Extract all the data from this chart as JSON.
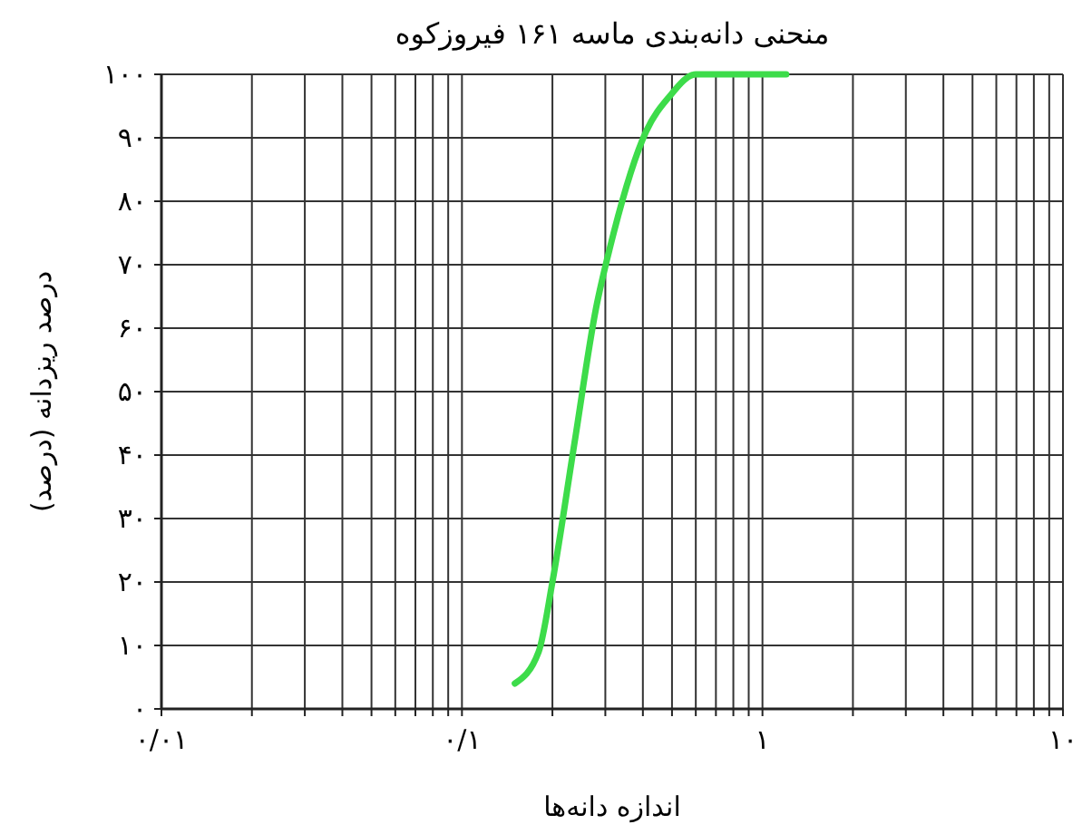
{
  "chart_data": {
    "type": "line",
    "title": "منحنی دانه‌بندی ماسه ۱۶۱ فیروزکوه",
    "xlabel": "اندازه دانه‌ها",
    "ylabel": "درصد ریزدانه (درصد)",
    "log": "x",
    "grid": true,
    "marker": "none",
    "line_style": "solid",
    "xlim": [
      0.01,
      10
    ],
    "ylim": [
      0,
      100
    ],
    "xticks": [
      {
        "value": 0.01,
        "label": "۰/۰۱"
      },
      {
        "value": 0.02,
        "label": null
      },
      {
        "value": 0.03,
        "label": null
      },
      {
        "value": 0.04,
        "label": null
      },
      {
        "value": 0.05,
        "label": null
      },
      {
        "value": 0.06,
        "label": null
      },
      {
        "value": 0.07,
        "label": null
      },
      {
        "value": 0.08,
        "label": null
      },
      {
        "value": 0.09,
        "label": null
      },
      {
        "value": 0.1,
        "label": "۰/۱"
      },
      {
        "value": 0.2,
        "label": null
      },
      {
        "value": 0.3,
        "label": null
      },
      {
        "value": 0.4,
        "label": null
      },
      {
        "value": 0.5,
        "label": null
      },
      {
        "value": 0.6,
        "label": null
      },
      {
        "value": 0.7,
        "label": null
      },
      {
        "value": 0.8,
        "label": null
      },
      {
        "value": 0.9,
        "label": null
      },
      {
        "value": 1,
        "label": "۱"
      },
      {
        "value": 2,
        "label": null
      },
      {
        "value": 3,
        "label": null
      },
      {
        "value": 4,
        "label": null
      },
      {
        "value": 5,
        "label": null
      },
      {
        "value": 6,
        "label": null
      },
      {
        "value": 7,
        "label": null
      },
      {
        "value": 8,
        "label": null
      },
      {
        "value": 9,
        "label": null
      },
      {
        "value": 10,
        "label": "۱۰"
      }
    ],
    "yticks": [
      {
        "value": 0,
        "label": "۰"
      },
      {
        "value": 10,
        "label": "۱۰"
      },
      {
        "value": 20,
        "label": "۲۰"
      },
      {
        "value": 30,
        "label": "۳۰"
      },
      {
        "value": 40,
        "label": "۴۰"
      },
      {
        "value": 50,
        "label": "۵۰"
      },
      {
        "value": 60,
        "label": "۶۰"
      },
      {
        "value": 70,
        "label": "۷۰"
      },
      {
        "value": 80,
        "label": "۸۰"
      },
      {
        "value": 90,
        "label": "۹۰"
      },
      {
        "value": 100,
        "label": "۱۰۰"
      }
    ],
    "series": [
      {
        "color": "#3ddc4a",
        "x": [
          0.15,
          0.18,
          0.2,
          0.237,
          0.279,
          0.312,
          0.41,
          0.49,
          0.6,
          1.2
        ],
        "values": [
          4,
          9,
          20,
          42,
          63,
          73,
          91,
          96.5,
          100,
          100
        ]
      }
    ]
  }
}
